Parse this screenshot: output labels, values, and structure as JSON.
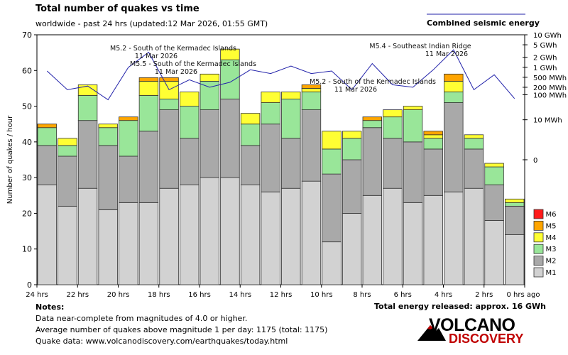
{
  "header": {
    "title": "Total number of quakes vs time",
    "subtitle": "worldwide - past 24 hrs (updated:12 Mar 2026, 01:55 GMT)",
    "energy_line_label": "Combined seismic energy"
  },
  "colors": {
    "M1": "#d2d2d2",
    "M2": "#a9a9a9",
    "M3": "#99e699",
    "M4": "#ffff33",
    "M5": "#ffa500",
    "M6": "#ff1a1a",
    "energy_line": "#2222aa",
    "logo_red": "#c00000"
  },
  "chart_data": {
    "type": "bar",
    "stacked": true,
    "title": "Total number of quakes vs time",
    "xlabel": "",
    "ylabel": "Number of quakes / hour",
    "ylim": [
      0,
      70
    ],
    "y_ticks": [
      0,
      10,
      20,
      30,
      40,
      50,
      60,
      70
    ],
    "x_tick_labels": [
      "24 hrs",
      "22 hrs",
      "20 hrs",
      "18 hrs",
      "16 hrs",
      "14 hrs",
      "12 hrs",
      "10 hrs",
      "8 hrs",
      "6 hrs",
      "4 hrs",
      "2 hrs",
      "0 hrs ago"
    ],
    "bins": 24,
    "series": [
      {
        "name": "M1",
        "values": [
          28,
          22,
          27,
          21,
          23,
          23,
          27,
          28,
          30,
          30,
          28,
          26,
          27,
          29,
          12,
          20,
          25,
          27,
          23,
          25,
          26,
          27,
          18,
          14
        ]
      },
      {
        "name": "M2",
        "values": [
          11,
          14,
          19,
          18,
          13,
          20,
          22,
          13,
          19,
          22,
          11,
          19,
          14,
          20,
          19,
          15,
          19,
          14,
          17,
          13,
          25,
          11,
          10,
          8
        ]
      },
      {
        "name": "M3",
        "values": [
          5,
          3,
          7,
          5,
          10,
          10,
          3,
          9,
          8,
          11,
          6,
          6,
          11,
          5,
          7,
          6,
          2,
          6,
          9,
          3,
          3,
          3,
          5,
          1
        ]
      },
      {
        "name": "M4",
        "values": [
          0,
          2,
          3,
          1,
          0,
          4,
          5,
          4,
          2,
          3,
          3,
          3,
          2,
          1,
          5,
          2,
          0,
          2,
          1,
          1,
          3,
          1,
          1,
          1
        ]
      },
      {
        "name": "M5",
        "values": [
          1,
          0,
          0,
          0,
          1,
          1,
          1,
          0,
          0,
          0,
          0,
          0,
          0,
          1,
          0,
          0,
          1,
          0,
          0,
          1,
          2,
          0,
          0,
          0
        ]
      },
      {
        "name": "M6",
        "values": [
          0,
          0,
          0,
          0,
          0,
          0,
          0,
          0,
          0,
          0,
          0,
          0,
          0,
          0,
          0,
          0,
          0,
          0,
          0,
          0,
          0,
          0,
          0,
          0
        ]
      }
    ],
    "legend": [
      "M6",
      "M5",
      "M4",
      "M3",
      "M2",
      "M1"
    ],
    "legend_position": "bottom-right",
    "energy_axis": {
      "label": "Combined seismic energy",
      "ticks": [
        "10 GWh",
        "5 GWh",
        "2 GWh",
        "1 GWh",
        "500 MWh",
        "200 MWh",
        "100 MWh",
        "10 MWh",
        "0"
      ],
      "tick_levels": [
        1.0,
        0.96,
        0.91,
        0.87,
        0.83,
        0.79,
        0.76,
        0.66,
        0.5
      ],
      "hourly_levels": [
        0.855,
        0.78,
        0.795,
        0.74,
        0.87,
        0.93,
        0.78,
        0.82,
        0.79,
        0.81,
        0.86,
        0.845,
        0.875,
        0.845,
        0.855,
        0.78,
        0.885,
        0.8,
        0.79,
        0.86,
        0.94,
        0.78,
        0.84,
        0.745
      ]
    },
    "annotations": [
      {
        "text": "M5.2 - South of the Kermadec Islands",
        "date": "11 Mar 2026",
        "bin": 5
      },
      {
        "text": "M5.5 - South of the Kermadec Islands",
        "date": "11 Mar 2026",
        "bin": 6
      },
      {
        "text": "M5.2 - South of the Kermadec Islands",
        "date": "11 Mar 2026",
        "bin": 14
      },
      {
        "text": "M5.4 - Southeast Indian Ridge",
        "date": "11 Mar 2026",
        "bin": 20
      }
    ]
  },
  "notes": {
    "heading": "Notes:",
    "line1": "Data near-complete from magnitudes of 4.0 or higher.",
    "line2": "Average number of quakes above magnitude 1 per day: 1175 (total: 1175)",
    "line3": "Quake data: www.volcanodiscovery.com/earthquakes/today.html"
  },
  "total_energy": "Total energy released: approx. 16 GWh",
  "logo": {
    "word1": "VOLCANO",
    "word2": "DISCOVERY"
  }
}
